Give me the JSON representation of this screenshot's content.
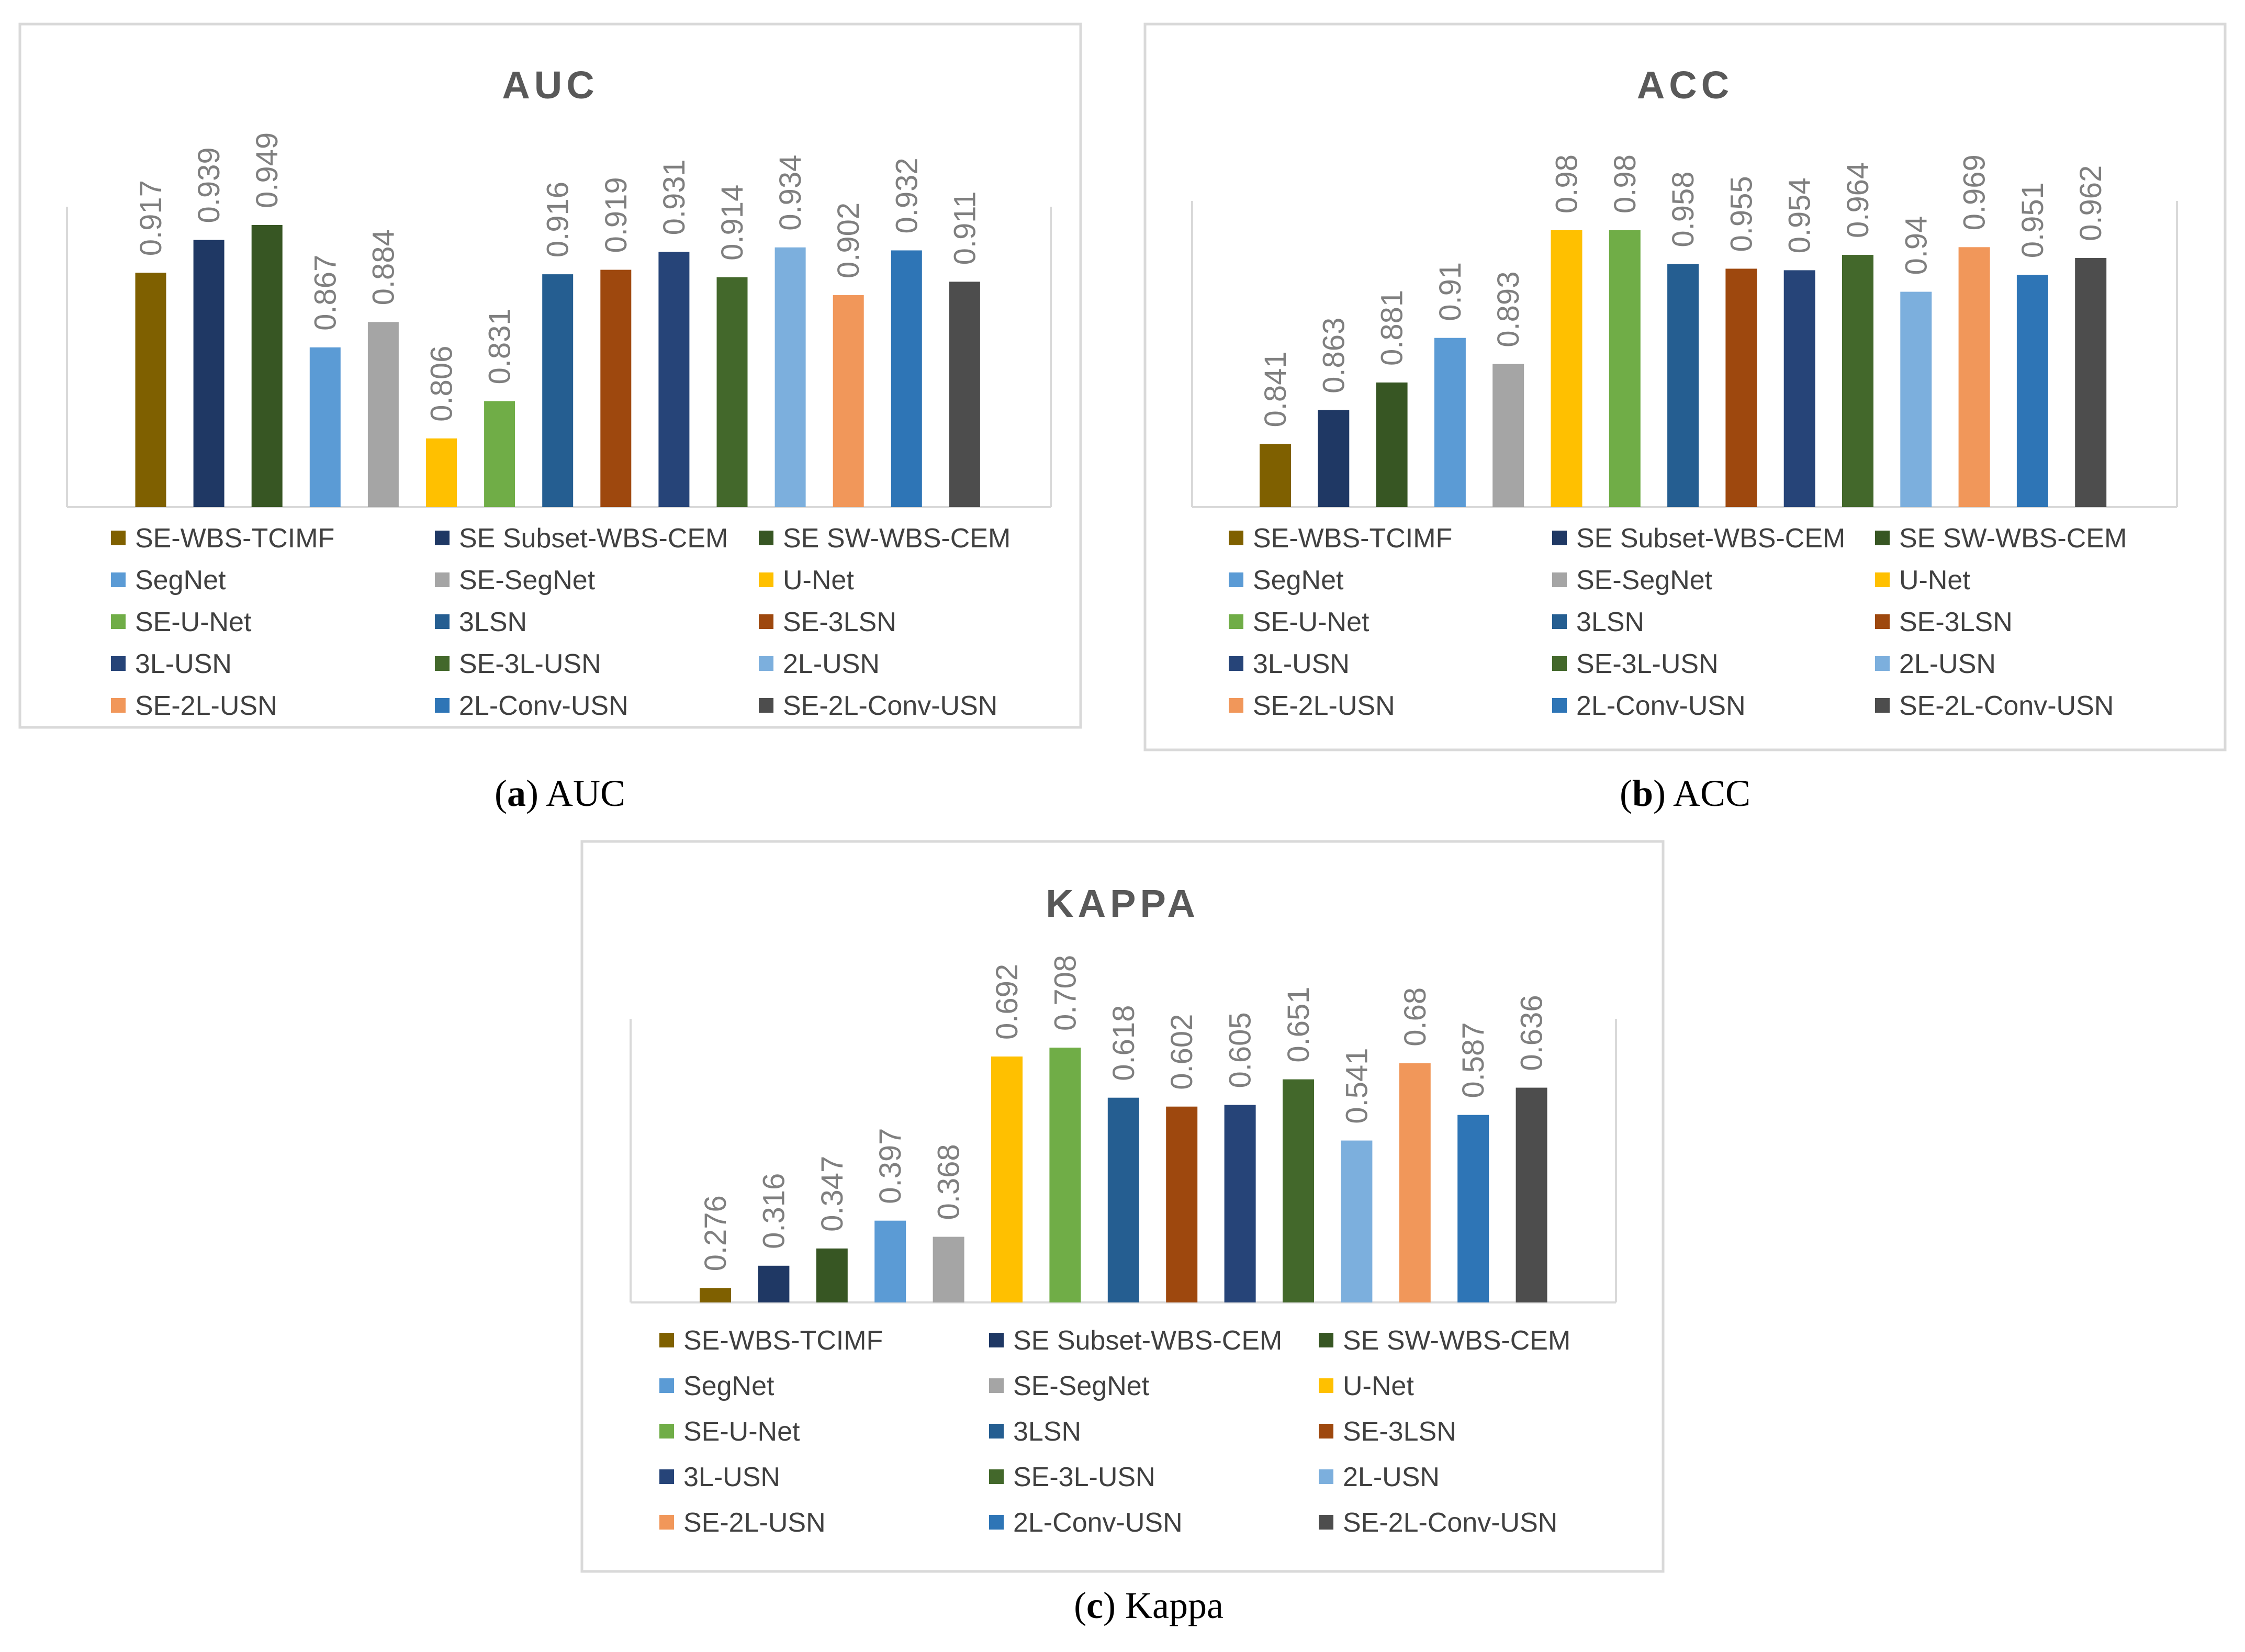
{
  "colors": {
    "SE-WBS-TCIMF": "#7f6000",
    "SE Subset-WBS-CEM": "#1f3864",
    "SE SW-WBS-CEM": "#375623",
    "SegNet": "#5b9bd5",
    "SE-SegNet": "#a5a5a5",
    "U-Net": "#ffc000",
    "SE-U-Net": "#70ad47",
    "3LSN": "#255e91",
    "SE-3LSN": "#9e480e",
    "3L-USN": "#264478",
    "SE-3L-USN": "#43682b",
    "2L-USN": "#7cafdd",
    "SE-2L-USN": "#f1975a",
    "2L-Conv-USN": "#2e75b6",
    "SE-2L-Conv-USN": "#4d4d4d"
  },
  "chart_data": [
    {
      "id": "auc",
      "type": "bar",
      "title": "AUC",
      "caption_bold": "a",
      "caption_text": "AUC",
      "categories": [
        "SE-WBS-TCIMF",
        "SE Subset-WBS-CEM",
        "SE SW-WBS-CEM",
        "SegNet",
        "SE-SegNet",
        "U-Net",
        "SE-U-Net",
        "3LSN",
        "SE-3LSN",
        "3L-USN",
        "SE-3L-USN",
        "2L-USN",
        "SE-2L-USN",
        "2L-Conv-USN",
        "SE-2L-Conv-USN"
      ],
      "values": [
        0.917,
        0.939,
        0.949,
        0.867,
        0.884,
        0.806,
        0.831,
        0.916,
        0.919,
        0.931,
        0.914,
        0.934,
        0.902,
        0.932,
        0.911
      ],
      "labels": [
        "0.917",
        "0.939",
        "0.949",
        "0.867",
        "0.884",
        "0.806",
        "0.831",
        "0.916",
        "0.919",
        "0.931",
        "0.914",
        "0.934",
        "0.902",
        "0.932",
        "0.911"
      ],
      "ylim": [
        0.76,
        0.96
      ],
      "legend_position": "bottom"
    },
    {
      "id": "acc",
      "type": "bar",
      "title": "ACC",
      "caption_bold": "b",
      "caption_text": "ACC",
      "categories": [
        "SE-WBS-TCIMF",
        "SE Subset-WBS-CEM",
        "SE SW-WBS-CEM",
        "SegNet",
        "SE-SegNet",
        "U-Net",
        "SE-U-Net",
        "3LSN",
        "SE-3LSN",
        "3L-USN",
        "SE-3L-USN",
        "2L-USN",
        "SE-2L-USN",
        "2L-Conv-USN",
        "SE-2L-Conv-USN"
      ],
      "values": [
        0.841,
        0.863,
        0.881,
        0.91,
        0.893,
        0.98,
        0.98,
        0.958,
        0.955,
        0.954,
        0.964,
        0.94,
        0.969,
        0.951,
        0.962
      ],
      "labels": [
        "0.841",
        "0.863",
        "0.881",
        "0.91",
        "0.893",
        "0.98",
        "0.98",
        "0.958",
        "0.955",
        "0.954",
        "0.964",
        "0.94",
        "0.969",
        "0.951",
        "0.962"
      ],
      "ylim": [
        0.8,
        0.98
      ],
      "legend_position": "bottom"
    },
    {
      "id": "kappa",
      "type": "bar",
      "title": "KAPPA",
      "caption_bold": "c",
      "caption_text": "Kappa",
      "categories": [
        "SE-WBS-TCIMF",
        "SE Subset-WBS-CEM",
        "SE SW-WBS-CEM",
        "SegNet",
        "SE-SegNet",
        "U-Net",
        "SE-U-Net",
        "3LSN",
        "SE-3LSN",
        "3L-USN",
        "SE-3L-USN",
        "2L-USN",
        "SE-2L-USN",
        "2L-Conv-USN",
        "SE-2L-Conv-USN"
      ],
      "values": [
        0.276,
        0.316,
        0.347,
        0.397,
        0.368,
        0.692,
        0.708,
        0.618,
        0.602,
        0.605,
        0.651,
        0.541,
        0.68,
        0.587,
        0.636
      ],
      "labels": [
        "0.276",
        "0.316",
        "0.347",
        "0.397",
        "0.368",
        "0.692",
        "0.708",
        "0.618",
        "0.602",
        "0.605",
        "0.651",
        "0.541",
        "0.68",
        "0.587",
        "0.636"
      ],
      "ylim": [
        0.25,
        0.75
      ],
      "legend_position": "bottom"
    }
  ]
}
